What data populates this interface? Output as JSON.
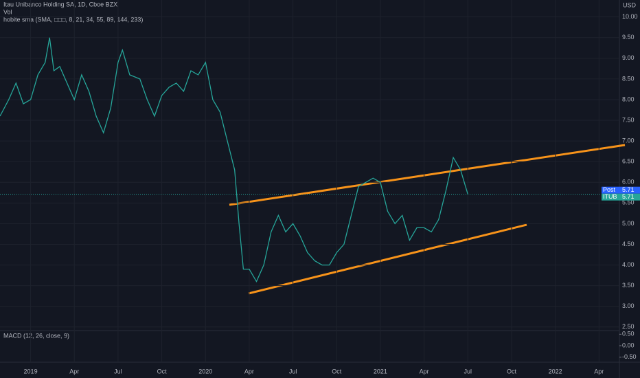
{
  "chart_data": {
    "type": "line",
    "title": "Itau Unibanco Holding SA, 1D, Cboe BZX",
    "subtitles": [
      "Vol",
      "hobite sma (SMA, □□□, 8, 21, 34, 55, 89, 144, 233)"
    ],
    "currency": "USD",
    "x": [
      -2.1,
      -1.5,
      -1,
      -0.5,
      0,
      0.5,
      1,
      1.3,
      1.6,
      2,
      2.5,
      3,
      3.5,
      4,
      4.5,
      5,
      5.5,
      6,
      6.3,
      6.8,
      7.5,
      8,
      8.5,
      9,
      9.5,
      10,
      10.5,
      11,
      11.5,
      12,
      12.5,
      13,
      13.5,
      14,
      14.3,
      14.6,
      15,
      15.5,
      16,
      16.5,
      17,
      17.5,
      18,
      18.5,
      19,
      19.5,
      20,
      20.5,
      21,
      21.5,
      22,
      22.5,
      23,
      23.5,
      24,
      24.5,
      25,
      25.5,
      26,
      26.5,
      27,
      27.5,
      28,
      28.5,
      29,
      29.5,
      30
    ],
    "series": [
      {
        "name": "ITUB",
        "color": "#26a69a",
        "values": [
          7.6,
          8.0,
          8.4,
          7.9,
          8.0,
          8.6,
          8.9,
          9.5,
          8.7,
          8.8,
          8.4,
          8.0,
          8.6,
          8.2,
          7.6,
          7.2,
          7.8,
          8.9,
          9.2,
          8.6,
          8.5,
          8.0,
          7.6,
          8.1,
          8.3,
          8.4,
          8.2,
          8.7,
          8.6,
          8.9,
          8.0,
          7.7,
          7.0,
          6.3,
          5.0,
          3.9,
          3.9,
          3.6,
          4.0,
          4.8,
          5.2,
          4.8,
          5.0,
          4.7,
          4.3,
          4.1,
          4.0,
          4.0,
          4.3,
          4.5,
          5.2,
          5.9,
          6.0,
          6.1,
          6.0,
          5.3,
          5.0,
          5.2,
          4.6,
          4.9,
          4.9,
          4.8,
          5.1,
          5.8,
          6.6,
          6.3,
          5.71
        ]
      }
    ],
    "xlim": [
      -2.1,
      40.4
    ],
    "xticks": [
      {
        "value": 0,
        "label": "2019"
      },
      {
        "value": 3,
        "label": "Apr"
      },
      {
        "value": 6,
        "label": "Jul"
      },
      {
        "value": 9,
        "label": "Oct"
      },
      {
        "value": 12,
        "label": "2020"
      },
      {
        "value": 15,
        "label": "Apr"
      },
      {
        "value": 18,
        "label": "Jul"
      },
      {
        "value": 21,
        "label": "Oct"
      },
      {
        "value": 24,
        "label": "2021"
      },
      {
        "value": 27,
        "label": "Apr"
      },
      {
        "value": 30,
        "label": "Jul"
      },
      {
        "value": 33,
        "label": "Oct"
      },
      {
        "value": 36,
        "label": "2022"
      },
      {
        "value": 39,
        "label": "Apr"
      }
    ],
    "ylim": [
      2.43,
      10.41
    ],
    "yticks": [
      {
        "value": 2.5,
        "label": "2.50"
      },
      {
        "value": 3,
        "label": "3.00"
      },
      {
        "value": 3.5,
        "label": "3.50"
      },
      {
        "value": 4,
        "label": "4.00"
      },
      {
        "value": 4.5,
        "label": "4.50"
      },
      {
        "value": 5,
        "label": "5.00"
      },
      {
        "value": 5.5,
        "label": "5.50"
      },
      {
        "value": 6,
        "label": "6.00"
      },
      {
        "value": 6.5,
        "label": "6.50"
      },
      {
        "value": 7,
        "label": "7.00"
      },
      {
        "value": 7.5,
        "label": "7.50"
      },
      {
        "value": 8,
        "label": "8.00"
      },
      {
        "value": 8.5,
        "label": "8.50"
      },
      {
        "value": 9,
        "label": "9.00"
      },
      {
        "value": 9.5,
        "label": "9.50"
      },
      {
        "value": 10,
        "label": "10.00"
      }
    ],
    "price_tags": [
      {
        "label": "Post",
        "value": 5.71,
        "color": "#2962ff"
      },
      {
        "label": "ITUB",
        "value": 5.71,
        "color": "#26a69a"
      }
    ],
    "macd": {
      "title": "MACD (12, 26, close, 9)",
      "ylim": [
        -0.6,
        0.6
      ],
      "yticks": [
        {
          "value": 0.5,
          "label": "0.50"
        },
        {
          "value": 0,
          "label": "0.00"
        },
        {
          "value": -0.5,
          "label": "-0.50"
        }
      ]
    },
    "grid": true
  }
}
